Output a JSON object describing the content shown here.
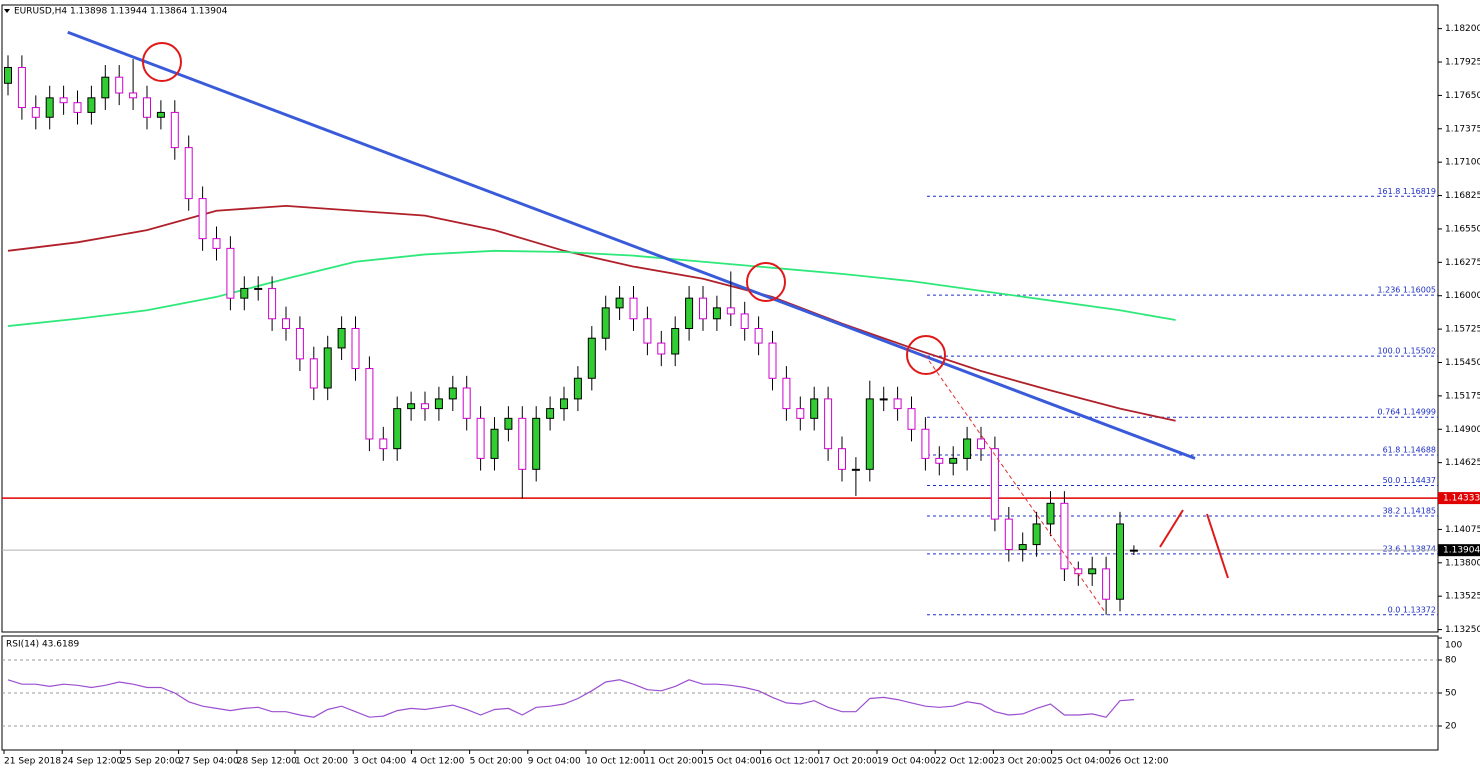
{
  "header": "EURUSD,H4  1.13898 1.13944 1.13864 1.13904",
  "chart_data": {
    "type": "candlestick",
    "bull_color": "#32cd32",
    "bear_color": "#d000d0",
    "candles": [
      [
        1.1775,
        1.1798,
        1.1765,
        1.1788
      ],
      [
        1.1788,
        1.1798,
        1.1745,
        1.1755
      ],
      [
        1.1755,
        1.1765,
        1.1737,
        1.1747
      ],
      [
        1.1747,
        1.1773,
        1.1737,
        1.1763
      ],
      [
        1.1763,
        1.1773,
        1.1749,
        1.1759
      ],
      [
        1.1759,
        1.1769,
        1.1741,
        1.1751
      ],
      [
        1.1751,
        1.1773,
        1.1741,
        1.1763
      ],
      [
        1.1763,
        1.179,
        1.1753,
        1.178
      ],
      [
        1.178,
        1.179,
        1.1757,
        1.1767
      ],
      [
        1.1767,
        1.1795,
        1.1753,
        1.1763
      ],
      [
        1.1763,
        1.1773,
        1.1737,
        1.1747
      ],
      [
        1.1747,
        1.1761,
        1.1737,
        1.1751
      ],
      [
        1.1751,
        1.1761,
        1.1712,
        1.1722
      ],
      [
        1.1722,
        1.1732,
        1.167,
        1.168
      ],
      [
        1.168,
        1.169,
        1.1637,
        1.1647
      ],
      [
        1.1647,
        1.1657,
        1.1629,
        1.1639
      ],
      [
        1.1639,
        1.1649,
        1.1588,
        1.1598
      ],
      [
        1.1598,
        1.1616,
        1.1588,
        1.1606
      ],
      [
        1.1606,
        1.1616,
        1.1596,
        1.1606
      ],
      [
        1.1606,
        1.1616,
        1.1571,
        1.1581
      ],
      [
        1.1581,
        1.1591,
        1.1563,
        1.1573
      ],
      [
        1.1573,
        1.1583,
        1.1538,
        1.1548
      ],
      [
        1.1548,
        1.1558,
        1.1514,
        1.1524
      ],
      [
        1.1524,
        1.1567,
        1.1514,
        1.1557
      ],
      [
        1.1557,
        1.1583,
        1.1547,
        1.1573
      ],
      [
        1.1573,
        1.1583,
        1.153,
        1.154
      ],
      [
        1.154,
        1.155,
        1.1472,
        1.1482
      ],
      [
        1.1482,
        1.1492,
        1.1464,
        1.1474
      ],
      [
        1.1474,
        1.1517,
        1.1464,
        1.1507
      ],
      [
        1.1507,
        1.1521,
        1.1497,
        1.1511
      ],
      [
        1.1511,
        1.1521,
        1.1497,
        1.1507
      ],
      [
        1.1507,
        1.1525,
        1.1497,
        1.1515
      ],
      [
        1.1515,
        1.1534,
        1.1505,
        1.1524
      ],
      [
        1.1524,
        1.1534,
        1.1489,
        1.1499
      ],
      [
        1.1499,
        1.1509,
        1.1456,
        1.1466
      ],
      [
        1.1466,
        1.15,
        1.1456,
        1.149
      ],
      [
        1.149,
        1.1509,
        1.148,
        1.1499
      ],
      [
        1.1499,
        1.1509,
        1.1433,
        1.1457
      ],
      [
        1.1457,
        1.1509,
        1.1447,
        1.1499
      ],
      [
        1.1499,
        1.1517,
        1.1489,
        1.1507
      ],
      [
        1.1507,
        1.1525,
        1.1497,
        1.1515
      ],
      [
        1.1515,
        1.1542,
        1.1505,
        1.1532
      ],
      [
        1.1532,
        1.1575,
        1.1522,
        1.1565
      ],
      [
        1.1565,
        1.16,
        1.1555,
        1.159
      ],
      [
        1.159,
        1.1608,
        1.158,
        1.1598
      ],
      [
        1.1598,
        1.1608,
        1.1571,
        1.1581
      ],
      [
        1.1581,
        1.1591,
        1.1551,
        1.1561
      ],
      [
        1.1561,
        1.1571,
        1.1542,
        1.1552
      ],
      [
        1.1552,
        1.1583,
        1.1542,
        1.1573
      ],
      [
        1.1573,
        1.1608,
        1.1563,
        1.1598
      ],
      [
        1.1598,
        1.1608,
        1.1571,
        1.1581
      ],
      [
        1.1581,
        1.16,
        1.1571,
        1.159
      ],
      [
        1.159,
        1.162,
        1.1575,
        1.1585
      ],
      [
        1.1585,
        1.1595,
        1.1563,
        1.1573
      ],
      [
        1.1573,
        1.1583,
        1.1551,
        1.1561
      ],
      [
        1.1561,
        1.1571,
        1.1522,
        1.1532
      ],
      [
        1.1532,
        1.1542,
        1.1497,
        1.1507
      ],
      [
        1.1507,
        1.1517,
        1.1489,
        1.1499
      ],
      [
        1.1499,
        1.1525,
        1.1489,
        1.1515
      ],
      [
        1.1515,
        1.1525,
        1.1464,
        1.1474
      ],
      [
        1.1474,
        1.1484,
        1.1447,
        1.1457
      ],
      [
        1.1457,
        1.1467,
        1.1435,
        1.1457
      ],
      [
        1.1457,
        1.153,
        1.1447,
        1.1515
      ],
      [
        1.1515,
        1.1525,
        1.1505,
        1.1515
      ],
      [
        1.1515,
        1.1525,
        1.1497,
        1.1507
      ],
      [
        1.1507,
        1.1517,
        1.148,
        1.149
      ],
      [
        1.149,
        1.15,
        1.1456,
        1.1466
      ],
      [
        1.1466,
        1.1476,
        1.1452,
        1.1462
      ],
      [
        1.1462,
        1.1476,
        1.1452,
        1.1466
      ],
      [
        1.1466,
        1.1492,
        1.1456,
        1.1482
      ],
      [
        1.1482,
        1.1492,
        1.1464,
        1.1474
      ],
      [
        1.1474,
        1.1484,
        1.1406,
        1.1416
      ],
      [
        1.1416,
        1.1426,
        1.1381,
        1.1391
      ],
      [
        1.1391,
        1.1405,
        1.1381,
        1.1395
      ],
      [
        1.1395,
        1.1422,
        1.1385,
        1.1412
      ],
      [
        1.1412,
        1.1439,
        1.1402,
        1.1429
      ],
      [
        1.1429,
        1.1439,
        1.1365,
        1.1375
      ],
      [
        1.1375,
        1.1381,
        1.1361,
        1.1371
      ],
      [
        1.1371,
        1.1385,
        1.1361,
        1.1375
      ],
      [
        1.1375,
        1.1385,
        1.13372,
        1.135
      ],
      [
        1.135,
        1.1422,
        1.134,
        1.1412
      ],
      [
        1.13898,
        1.13944,
        1.13864,
        1.13904
      ]
    ],
    "ylim": [
      1.1323,
      1.1837
    ],
    "yticks": [
      {
        "value": 1.182,
        "label": "1.18200"
      },
      {
        "value": 1.17925,
        "label": "1.17925"
      },
      {
        "value": 1.1765,
        "label": "1.17650"
      },
      {
        "value": 1.17375,
        "label": "1.17375"
      },
      {
        "value": 1.171,
        "label": "1.17100"
      },
      {
        "value": 1.16825,
        "label": "1.16825"
      },
      {
        "value": 1.1655,
        "label": "1.16550"
      },
      {
        "value": 1.16275,
        "label": "1.16275"
      },
      {
        "value": 1.16,
        "label": "1.16000"
      },
      {
        "value": 1.15725,
        "label": "1.15725"
      },
      {
        "value": 1.1545,
        "label": "1.15450"
      },
      {
        "value": 1.15175,
        "label": "1.15175"
      },
      {
        "value": 1.149,
        "label": "1.14900"
      },
      {
        "value": 1.14625,
        "label": "1.14625"
      },
      {
        "value": 1.14075,
        "label": "1.14075"
      },
      {
        "value": 1.138,
        "label": "1.13800"
      },
      {
        "value": 1.13525,
        "label": "1.13525"
      },
      {
        "value": 1.1325,
        "label": "1.13250"
      }
    ],
    "x_labels": [
      "21 Sep 2018",
      "24 Sep 12:00",
      "25 Sep 20:00",
      "27 Sep 04:00",
      "28 Sep 12:00",
      "1 Oct 20:00",
      "3 Oct 04:00",
      "4 Oct 12:00",
      "5 Oct 20:00",
      "9 Oct 04:00",
      "10 Oct 12:00",
      "11 Oct 20:00",
      "15 Oct 04:00",
      "16 Oct 12:00",
      "17 Oct 20:00",
      "19 Oct 04:00",
      "22 Oct 12:00",
      "23 Oct 20:00",
      "25 Oct 04:00",
      "26 Oct 12:00"
    ],
    "moving_averages": [
      {
        "color": "#b0202a",
        "x": [
          0,
          5,
          10,
          15,
          20,
          25,
          30,
          35,
          40,
          45,
          50,
          55,
          60,
          65,
          70,
          75,
          80,
          84
        ],
        "values": [
          1.1637,
          1.1644,
          1.1654,
          1.167,
          1.1674,
          1.167,
          1.1666,
          1.1654,
          1.1637,
          1.1624,
          1.1614,
          1.1599,
          1.1577,
          1.1557,
          1.1538,
          1.1522,
          1.1507,
          1.1497
        ]
      },
      {
        "color": "#2ee87a",
        "x": [
          0,
          5,
          10,
          15,
          20,
          25,
          30,
          35,
          40,
          45,
          50,
          55,
          60,
          65,
          70,
          75,
          80,
          84
        ],
        "values": [
          1.1575,
          1.1581,
          1.1588,
          1.1599,
          1.1614,
          1.1628,
          1.1634,
          1.1637,
          1.1636,
          1.1633,
          1.1628,
          1.1623,
          1.1618,
          1.1612,
          1.1604,
          1.1596,
          1.1588,
          1.158
        ]
      }
    ],
    "trendline": {
      "color": "#3a5bd9",
      "x": [
        4.3,
        85.4
      ],
      "values": [
        1.1817,
        1.1466
      ]
    },
    "support": {
      "value": 1.14333,
      "label": "1.14333",
      "color": "#e00000"
    },
    "last_price": {
      "value": 1.13904,
      "label": "1.13904",
      "color": "#b0b0b0"
    },
    "fibonacci": [
      {
        "label": "161.8 1.16819",
        "value": 1.16819
      },
      {
        "label": "1.236 1.16005",
        "value": 1.16005
      },
      {
        "label": "100.0 1.15502",
        "value": 1.15502
      },
      {
        "label": "0.764 1.14999",
        "value": 1.14999
      },
      {
        "label": "61.8 1.14688",
        "value": 1.14688
      },
      {
        "label": "50.0 1.14437",
        "value": 1.14437
      },
      {
        "label": "38.2 1.14185",
        "value": 1.14185
      },
      {
        "label": "23.6 1.13874",
        "value": 1.13874
      },
      {
        "label": "0.0 1.13372",
        "value": 1.13372
      }
    ],
    "rsi": {
      "title": "RSI(14) 43.6189",
      "color": "#9b4fd0",
      "ylim": [
        0,
        100
      ],
      "yticks": [
        100,
        80,
        50,
        20
      ],
      "levels": [
        80,
        50,
        20
      ],
      "values": [
        62,
        58,
        58,
        56,
        58,
        57,
        55,
        57,
        60,
        58,
        55,
        55,
        50,
        42,
        38,
        36,
        34,
        36,
        37,
        33,
        33,
        30,
        28,
        35,
        38,
        33,
        28,
        29,
        34,
        36,
        35,
        37,
        39,
        35,
        30,
        35,
        36,
        30,
        37,
        38,
        40,
        45,
        52,
        60,
        62,
        58,
        53,
        52,
        56,
        62,
        58,
        58,
        57,
        55,
        52,
        46,
        41,
        40,
        43,
        37,
        33,
        33,
        45,
        46,
        44,
        41,
        38,
        37,
        38,
        42,
        40,
        33,
        30,
        31,
        36,
        40,
        30,
        30,
        31,
        28,
        43,
        44
      ]
    }
  }
}
